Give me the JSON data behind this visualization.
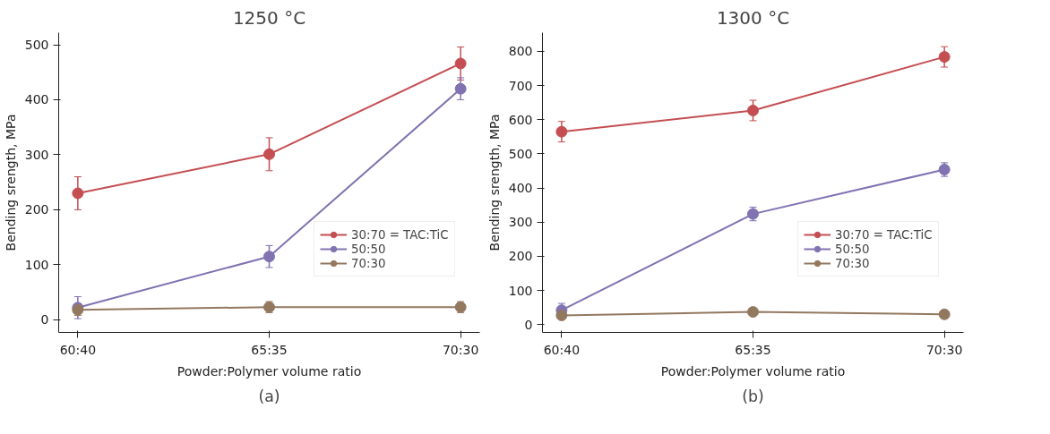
{
  "chart_data": [
    {
      "type": "line",
      "title": "1250 °C",
      "xlabel": "Powder:Polymer volume ratio",
      "ylabel": "Bending srength, MPa",
      "categories": [
        "60:40",
        "65:35",
        "70:30"
      ],
      "ylim": [
        -23,
        522
      ],
      "yticks": [
        0,
        100,
        200,
        300,
        400,
        500
      ],
      "grid": false,
      "legend": "right",
      "marker": "circle",
      "line_style": "solid",
      "annotations": [
        "(a)"
      ],
      "series": [
        {
          "name": "30:70 = TAC:TiC",
          "color": "#c44e52",
          "values": [
            230,
            301,
            466
          ],
          "errors": [
            30,
            30,
            30
          ]
        },
        {
          "name": "50:50",
          "color": "#8172b2",
          "values": [
            22,
            115,
            420
          ],
          "errors": [
            20,
            20,
            20
          ]
        },
        {
          "name": "70:30",
          "color": "#937860",
          "values": [
            18,
            23,
            23
          ],
          "errors": [
            10,
            10,
            10
          ]
        }
      ]
    },
    {
      "type": "line",
      "title": "1300 °C",
      "xlabel": "Powder:Polymer volume ratio",
      "ylabel": "Bending srength, MPa",
      "categories": [
        "60:40",
        "65:35",
        "70:30"
      ],
      "ylim": [
        -23,
        855
      ],
      "yticks": [
        0,
        100,
        200,
        300,
        400,
        500,
        600,
        700,
        800
      ],
      "grid": false,
      "legend": "right",
      "marker": "circle",
      "line_style": "solid",
      "annotations": [
        "(b)"
      ],
      "series": [
        {
          "name": "30:70 = TAC:TiC",
          "color": "#c44e52",
          "values": [
            565,
            627,
            784
          ],
          "errors": [
            30,
            30,
            30
          ]
        },
        {
          "name": "50:50",
          "color": "#8172b2",
          "values": [
            42,
            324,
            454
          ],
          "errors": [
            20,
            20,
            20
          ]
        },
        {
          "name": "70:30",
          "color": "#937860",
          "values": [
            27,
            37,
            30
          ],
          "errors": [
            5,
            5,
            5
          ]
        }
      ]
    }
  ]
}
